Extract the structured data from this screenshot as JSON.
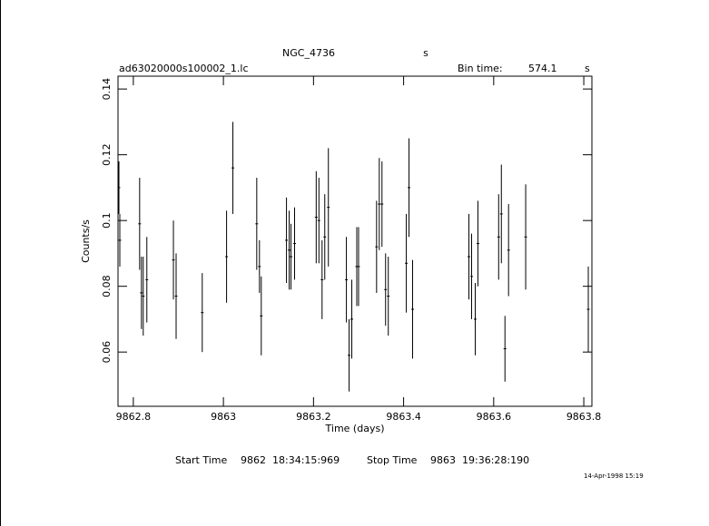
{
  "chart_data": {
    "type": "errorbar",
    "title": "NGC_4736",
    "title_unit": "s",
    "file_name": "ad63020000s100002_1.lc",
    "bin_time_label": "Bin time:",
    "bin_time": 574.1,
    "bin_time_unit": "s",
    "xlabel": "Time (days)",
    "ylabel": "Counts/s",
    "start_label": "Start Time",
    "start_time": "9862  18:34:15:969",
    "stop_label": "Stop Time",
    "stop_time": "9863  19:36:28:190",
    "timestamp": "14-Apr-1998 15:19",
    "xlim": [
      9862.766,
      9863.818
    ],
    "xticks": [
      9862.8,
      9863,
      9863.2,
      9863.4,
      9863.6,
      9863.8
    ],
    "ylim": [
      0.0435,
      0.1439
    ],
    "yticks": [
      0.06,
      0.08,
      0.1,
      0.12,
      0.14
    ],
    "series": [
      {
        "color": "#000000",
        "x": [
          9862.768,
          9862.77,
          9862.814,
          9862.818,
          9862.822,
          9862.83,
          9862.889,
          9862.895,
          9862.953,
          9863.007,
          9863.021,
          9863.074,
          9863.08,
          9863.084,
          9863.14,
          9863.146,
          9863.15,
          9863.158,
          9863.206,
          9863.212,
          9863.219,
          9863.225,
          9863.233,
          9863.273,
          9863.279,
          9863.285,
          9863.296,
          9863.3,
          9863.34,
          9863.346,
          9863.352,
          9863.36,
          9863.366,
          9863.406,
          9863.412,
          9863.42,
          9863.545,
          9863.551,
          9863.559,
          9863.565,
          9863.611,
          9863.617,
          9863.625,
          9863.633,
          9863.671,
          9863.81
        ],
        "values": [
          0.11,
          0.094,
          0.099,
          0.078,
          0.077,
          0.082,
          0.088,
          0.077,
          0.072,
          0.089,
          0.116,
          0.099,
          0.086,
          0.071,
          0.094,
          0.091,
          0.089,
          0.093,
          0.101,
          0.1,
          0.082,
          0.095,
          0.104,
          0.082,
          0.059,
          0.07,
          0.086,
          0.086,
          0.092,
          0.105,
          0.105,
          0.079,
          0.077,
          0.087,
          0.11,
          0.073,
          0.089,
          0.083,
          0.07,
          0.093,
          0.095,
          0.102,
          0.061,
          0.091,
          0.095,
          0.073
        ],
        "errors": [
          0.008,
          0.008,
          0.014,
          0.011,
          0.012,
          0.013,
          0.012,
          0.013,
          0.012,
          0.014,
          0.014,
          0.014,
          0.008,
          0.012,
          0.013,
          0.012,
          0.01,
          0.011,
          0.014,
          0.013,
          0.012,
          0.013,
          0.018,
          0.013,
          0.011,
          0.012,
          0.012,
          0.012,
          0.014,
          0.014,
          0.013,
          0.011,
          0.012,
          0.015,
          0.015,
          0.015,
          0.013,
          0.013,
          0.011,
          0.013,
          0.013,
          0.015,
          0.01,
          0.014,
          0.016,
          0.013
        ]
      }
    ]
  }
}
